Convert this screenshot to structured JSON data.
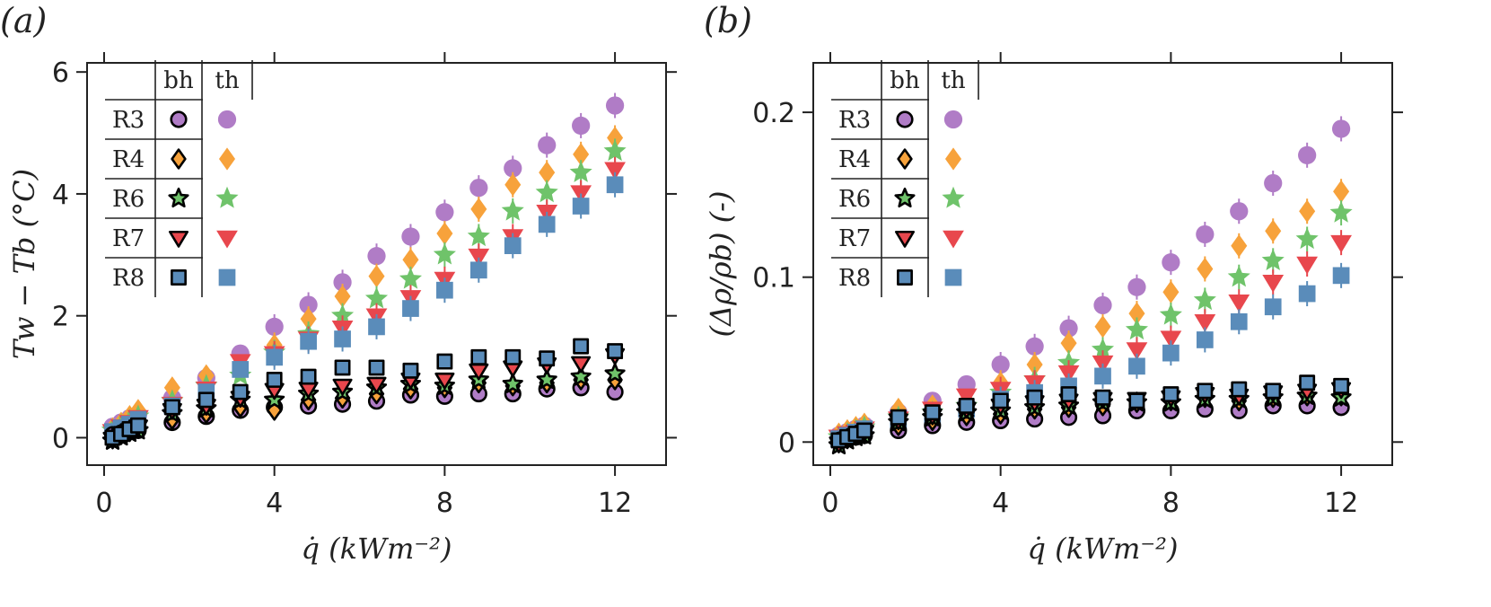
{
  "chart_data": [
    {
      "type": "scatter",
      "panel": "(a)",
      "xlabel": "q̇ (kWm⁻²)",
      "ylabel": "Tw − Tb (°C)",
      "xlim": [
        -0.4,
        13.2
      ],
      "ylim": [
        -0.45,
        6.15
      ],
      "xticks": [
        0,
        4,
        8,
        12
      ],
      "yticks": [
        0,
        2,
        4,
        6
      ],
      "grid": false,
      "legend": {
        "placement": "top-left",
        "headers": [
          "bh",
          "th"
        ],
        "rows": [
          "R3",
          "R4",
          "R6",
          "R7",
          "R8"
        ]
      },
      "x": [
        0.2,
        0.4,
        0.6,
        0.8,
        1.6,
        2.4,
        3.2,
        4.0,
        4.8,
        5.6,
        6.4,
        7.2,
        8.0,
        8.8,
        9.6,
        10.4,
        11.2,
        12.0
      ],
      "series": [
        {
          "name": "R3",
          "group": "th",
          "values": [
            0.18,
            0.25,
            0.32,
            0.38,
            0.65,
            0.98,
            1.38,
            1.82,
            2.18,
            2.55,
            2.98,
            3.3,
            3.7,
            4.1,
            4.42,
            4.8,
            5.12,
            5.45
          ]
        },
        {
          "name": "R4",
          "group": "th",
          "values": [
            0.15,
            0.24,
            0.35,
            0.45,
            0.82,
            1.02,
            1.12,
            1.52,
            1.95,
            2.32,
            2.65,
            2.92,
            3.35,
            3.75,
            4.15,
            4.35,
            4.65,
            4.92
          ]
        },
        {
          "name": "R6",
          "group": "th",
          "values": [
            0.12,
            0.2,
            0.28,
            0.35,
            0.6,
            0.85,
            1.02,
            1.4,
            1.7,
            2.0,
            2.28,
            2.6,
            3.0,
            3.3,
            3.72,
            4.02,
            4.35,
            4.7
          ]
        },
        {
          "name": "R7",
          "group": "th",
          "values": [
            0.1,
            0.18,
            0.25,
            0.33,
            0.55,
            0.8,
            1.25,
            1.38,
            1.62,
            1.8,
            2.0,
            2.3,
            2.6,
            2.98,
            3.3,
            3.7,
            4.02,
            4.4
          ]
        },
        {
          "name": "R8",
          "group": "th",
          "values": [
            0.1,
            0.16,
            0.22,
            0.3,
            0.52,
            0.75,
            1.12,
            1.32,
            1.58,
            1.62,
            1.82,
            2.12,
            2.42,
            2.75,
            3.15,
            3.5,
            3.8,
            4.15
          ]
        },
        {
          "name": "R3",
          "group": "bh",
          "values": [
            0.05,
            0.08,
            0.1,
            0.12,
            0.25,
            0.35,
            0.45,
            0.5,
            0.52,
            0.55,
            0.6,
            0.7,
            0.68,
            0.72,
            0.72,
            0.8,
            0.82,
            0.75
          ]
        },
        {
          "name": "R4",
          "group": "bh",
          "values": [
            -0.02,
            0.05,
            0.1,
            0.15,
            0.3,
            0.4,
            0.5,
            0.45,
            0.62,
            0.65,
            0.72,
            0.8,
            0.82,
            0.9,
            0.85,
            0.9,
            0.95,
            0.95
          ]
        },
        {
          "name": "R6",
          "group": "bh",
          "values": [
            -0.05,
            0.02,
            0.08,
            0.12,
            0.4,
            0.48,
            0.62,
            0.62,
            0.72,
            0.75,
            0.82,
            0.88,
            0.85,
            0.95,
            0.88,
            0.95,
            1.0,
            1.05
          ]
        },
        {
          "name": "R7",
          "group": "bh",
          "values": [
            -0.02,
            0.05,
            0.12,
            0.18,
            0.45,
            0.52,
            0.65,
            0.78,
            0.8,
            0.85,
            0.88,
            0.95,
            0.95,
            1.1,
            1.15,
            1.2,
            1.22,
            1.35
          ]
        },
        {
          "name": "R8",
          "group": "bh",
          "values": [
            0.0,
            0.06,
            0.14,
            0.2,
            0.5,
            0.62,
            0.75,
            0.95,
            1.0,
            1.15,
            1.15,
            1.1,
            1.25,
            1.32,
            1.32,
            1.3,
            1.5,
            1.42
          ]
        }
      ]
    },
    {
      "type": "scatter",
      "panel": "(b)",
      "xlabel": "q̇ (kWm⁻²)",
      "ylabel": "(Δρ/ρb) (-)",
      "xlim": [
        -0.4,
        13.2
      ],
      "ylim": [
        -0.014,
        0.23
      ],
      "xticks": [
        0,
        4,
        8,
        12
      ],
      "yticks": [
        0,
        0.1,
        0.2
      ],
      "grid": false,
      "legend": {
        "placement": "top-left",
        "headers": [
          "bh",
          "th"
        ],
        "rows": [
          "R3",
          "R4",
          "R6",
          "R7",
          "R8"
        ]
      },
      "x": [
        0.2,
        0.4,
        0.6,
        0.8,
        1.6,
        2.4,
        3.2,
        4.0,
        4.8,
        5.6,
        6.4,
        7.2,
        8.0,
        8.8,
        9.6,
        10.4,
        11.2,
        12.0
      ],
      "series": [
        {
          "name": "R3",
          "group": "th",
          "values": [
            0.004,
            0.006,
            0.008,
            0.01,
            0.018,
            0.025,
            0.035,
            0.047,
            0.058,
            0.069,
            0.083,
            0.094,
            0.109,
            0.126,
            0.14,
            0.157,
            0.174,
            0.19
          ]
        },
        {
          "name": "R4",
          "group": "th",
          "values": [
            0.005,
            0.007,
            0.009,
            0.011,
            0.02,
            0.022,
            0.025,
            0.036,
            0.047,
            0.06,
            0.07,
            0.078,
            0.091,
            0.105,
            0.119,
            0.128,
            0.14,
            0.152
          ]
        },
        {
          "name": "R6",
          "group": "th",
          "values": [
            0.003,
            0.005,
            0.007,
            0.009,
            0.015,
            0.018,
            0.022,
            0.03,
            0.038,
            0.048,
            0.056,
            0.068,
            0.077,
            0.086,
            0.1,
            0.11,
            0.123,
            0.139
          ]
        },
        {
          "name": "R7",
          "group": "th",
          "values": [
            0.003,
            0.005,
            0.006,
            0.008,
            0.014,
            0.02,
            0.028,
            0.032,
            0.036,
            0.042,
            0.048,
            0.056,
            0.063,
            0.073,
            0.085,
            0.097,
            0.108,
            0.121
          ]
        },
        {
          "name": "R8",
          "group": "th",
          "values": [
            0.002,
            0.004,
            0.006,
            0.008,
            0.012,
            0.016,
            0.02,
            0.026,
            0.03,
            0.034,
            0.04,
            0.046,
            0.054,
            0.062,
            0.073,
            0.082,
            0.09,
            0.101
          ]
        },
        {
          "name": "R3",
          "group": "bh",
          "values": [
            0.001,
            0.002,
            0.003,
            0.004,
            0.007,
            0.01,
            0.012,
            0.013,
            0.014,
            0.015,
            0.016,
            0.019,
            0.019,
            0.02,
            0.019,
            0.022,
            0.022,
            0.021
          ]
        },
        {
          "name": "R4",
          "group": "bh",
          "values": [
            0.0,
            0.002,
            0.004,
            0.005,
            0.01,
            0.013,
            0.016,
            0.017,
            0.02,
            0.021,
            0.022,
            0.024,
            0.025,
            0.027,
            0.025,
            0.027,
            0.028,
            0.028
          ]
        },
        {
          "name": "R6",
          "group": "bh",
          "values": [
            -0.002,
            0.001,
            0.003,
            0.004,
            0.012,
            0.015,
            0.018,
            0.019,
            0.021,
            0.022,
            0.024,
            0.024,
            0.024,
            0.026,
            0.026,
            0.027,
            0.028,
            0.027
          ]
        },
        {
          "name": "R7",
          "group": "bh",
          "values": [
            -0.001,
            0.002,
            0.004,
            0.006,
            0.013,
            0.016,
            0.02,
            0.022,
            0.024,
            0.025,
            0.026,
            0.026,
            0.027,
            0.029,
            0.028,
            0.03,
            0.031,
            0.032
          ]
        },
        {
          "name": "R8",
          "group": "bh",
          "values": [
            0.001,
            0.003,
            0.005,
            0.007,
            0.015,
            0.018,
            0.022,
            0.025,
            0.027,
            0.029,
            0.027,
            0.025,
            0.029,
            0.031,
            0.032,
            0.031,
            0.036,
            0.034
          ]
        }
      ]
    }
  ],
  "colors": {
    "R3": "#b07cc6",
    "R4": "#f7a23b",
    "R6": "#6fc36a",
    "R7": "#e8474d",
    "R8": "#5a8cba",
    "outline": "#000000"
  },
  "markers": {
    "R3": "circle",
    "R4": "diamond",
    "R6": "star",
    "R7": "triangle-down",
    "R8": "square"
  }
}
